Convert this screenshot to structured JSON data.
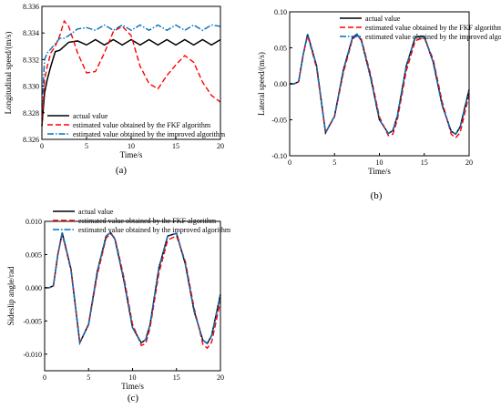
{
  "chart_data": [
    {
      "id": "a",
      "type": "line",
      "panel_label": "(a)",
      "xlabel": "Time/s",
      "ylabel": "Longitudinal speed/(m/s)",
      "xlim": [
        0,
        20
      ],
      "ylim": [
        8.326,
        8.336
      ],
      "xticks": [
        0,
        5,
        10,
        15,
        20
      ],
      "yticks": [
        8.326,
        8.328,
        8.33,
        8.332,
        8.334,
        8.336
      ],
      "ytick_labels": [
        "8.326",
        "8.328",
        "8.330",
        "8.332",
        "8.334",
        "8.336"
      ],
      "legend_position": "bottom-left",
      "series": [
        {
          "name": "actual value",
          "color": "#000000",
          "dash": "solid",
          "x": [
            0,
            0.3,
            0.6,
            1,
            1.5,
            2,
            2.5,
            3,
            4,
            5,
            6,
            7,
            8,
            9,
            10,
            11,
            12,
            13,
            14,
            15,
            16,
            17,
            18,
            19,
            20
          ],
          "y": [
            8.327,
            8.3295,
            8.3305,
            8.3315,
            8.3326,
            8.3327,
            8.333,
            8.3333,
            8.3334,
            8.3331,
            8.3335,
            8.3331,
            8.3335,
            8.3331,
            8.3335,
            8.3331,
            8.3335,
            8.3331,
            8.3335,
            8.3331,
            8.3335,
            8.3331,
            8.3335,
            8.3331,
            8.3335
          ]
        },
        {
          "name": "estimated value obtained by the FKF algorithm",
          "color": "#ff0000",
          "dash": "dashed",
          "x": [
            0,
            0.3,
            0.6,
            1,
            1.5,
            2,
            2.5,
            3,
            4,
            5,
            6,
            7,
            8,
            9,
            10,
            11,
            12,
            13,
            14,
            15,
            16,
            17,
            18,
            19,
            20
          ],
          "y": [
            8.327,
            8.3305,
            8.3315,
            8.3325,
            8.333,
            8.3338,
            8.3349,
            8.3345,
            8.3325,
            8.331,
            8.3311,
            8.3325,
            8.3341,
            8.3345,
            8.3338,
            8.3315,
            8.3302,
            8.3298,
            8.3308,
            8.3316,
            8.3323,
            8.3318,
            8.3303,
            8.3293,
            8.3288
          ]
        },
        {
          "name": "estimated value obtained by the improved algorithm",
          "color": "#0070c0",
          "dash": "dashdot",
          "x": [
            0,
            0.3,
            0.6,
            1,
            1.5,
            2,
            2.5,
            3,
            4,
            5,
            6,
            7,
            8,
            9,
            10,
            11,
            12,
            13,
            14,
            15,
            16,
            17,
            18,
            19,
            20
          ],
          "y": [
            8.3285,
            8.332,
            8.3325,
            8.3328,
            8.3332,
            8.3336,
            8.3336,
            8.3338,
            8.3343,
            8.3344,
            8.3342,
            8.3346,
            8.3342,
            8.3346,
            8.3342,
            8.3346,
            8.3342,
            8.3346,
            8.3342,
            8.3346,
            8.3342,
            8.3346,
            8.3342,
            8.3346,
            8.3345
          ]
        }
      ]
    },
    {
      "id": "b",
      "type": "line",
      "panel_label": "(b)",
      "xlabel": "Time/s",
      "ylabel": "Lateral speed/(m/s)",
      "xlim": [
        0,
        20
      ],
      "ylim": [
        -0.1,
        0.1
      ],
      "xticks": [
        0,
        5,
        10,
        15,
        20
      ],
      "yticks": [
        -0.1,
        -0.05,
        0,
        0.05,
        0.1
      ],
      "ytick_labels": [
        "-0.10",
        "-0.05",
        "0.00",
        "0.05",
        "0.10"
      ],
      "legend_position": "top-right",
      "series": [
        {
          "name": "actual value",
          "color": "#000000",
          "dash": "solid",
          "x": [
            0,
            0.5,
            1,
            1.5,
            2,
            3,
            4,
            5,
            6,
            7,
            7.5,
            8,
            9,
            10,
            11,
            11.5,
            12,
            13,
            14,
            15,
            16,
            17,
            18,
            18.5,
            19,
            20
          ],
          "y": [
            0,
            0,
            0.003,
            0.04,
            0.069,
            0.025,
            -0.068,
            -0.045,
            0.02,
            0.064,
            0.069,
            0.06,
            0.01,
            -0.05,
            -0.069,
            -0.065,
            -0.045,
            0.025,
            0.065,
            0.066,
            0.03,
            -0.03,
            -0.066,
            -0.07,
            -0.06,
            -0.008
          ]
        },
        {
          "name": "estimated value obtained by the FKF algorithm",
          "color": "#ff0000",
          "dash": "dashed",
          "x": [
            0,
            0.5,
            1,
            1.5,
            2,
            3,
            4,
            5,
            6,
            7,
            7.5,
            8,
            9,
            10,
            11,
            11.5,
            12,
            13,
            14,
            15,
            16,
            17,
            18,
            18.5,
            19,
            20
          ],
          "y": [
            0,
            0,
            0.003,
            0.04,
            0.067,
            0.022,
            -0.068,
            -0.046,
            0.016,
            0.062,
            0.067,
            0.062,
            0.014,
            -0.046,
            -0.072,
            -0.07,
            -0.05,
            0.018,
            0.06,
            0.064,
            0.034,
            -0.025,
            -0.07,
            -0.075,
            -0.068,
            -0.015
          ]
        },
        {
          "name": "estimated value obtained by the improved algorithm",
          "color": "#0070c0",
          "dash": "dashdot",
          "x": [
            0,
            0.5,
            1,
            1.5,
            2,
            3,
            4,
            5,
            6,
            7,
            7.5,
            8,
            9,
            10,
            11,
            11.5,
            12,
            13,
            14,
            15,
            16,
            17,
            18,
            18.5,
            19,
            20
          ],
          "y": [
            0,
            0,
            0.003,
            0.04,
            0.069,
            0.025,
            -0.068,
            -0.045,
            0.02,
            0.064,
            0.069,
            0.06,
            0.01,
            -0.05,
            -0.069,
            -0.065,
            -0.045,
            0.025,
            0.065,
            0.066,
            0.03,
            -0.03,
            -0.066,
            -0.07,
            -0.06,
            -0.009
          ]
        }
      ]
    },
    {
      "id": "c",
      "type": "line",
      "panel_label": "(c)",
      "xlabel": "Time/s",
      "ylabel": "Sideslip angle/rad",
      "xlim": [
        0,
        20
      ],
      "ylim": [
        -0.0125,
        0.01
      ],
      "xticks": [
        0,
        5,
        10,
        15,
        20
      ],
      "yticks": [
        -0.01,
        -0.005,
        0,
        0.005,
        0.01
      ],
      "ytick_labels": [
        "-0.010",
        "-0.005",
        "0.000",
        "0.005",
        "0.010"
      ],
      "legend_position": "top-left",
      "series": [
        {
          "name": "actual value",
          "color": "#000000",
          "dash": "solid",
          "x": [
            0,
            0.5,
            1,
            1.5,
            2,
            3,
            4,
            5,
            6,
            7,
            7.5,
            8,
            9,
            10,
            11,
            11.5,
            12,
            13,
            14,
            15,
            16,
            17,
            18,
            18.5,
            19,
            20
          ],
          "y": [
            0,
            0,
            0.0003,
            0.005,
            0.0083,
            0.0028,
            -0.0083,
            -0.0055,
            0.0025,
            0.0078,
            0.0083,
            0.0073,
            0.0012,
            -0.006,
            -0.0083,
            -0.0078,
            -0.0055,
            0.003,
            0.0078,
            0.0082,
            0.0036,
            -0.0035,
            -0.0079,
            -0.0084,
            -0.0072,
            -0.001
          ]
        },
        {
          "name": "estimated value obtained by the FKF algorithm",
          "color": "#ff0000",
          "dash": "dashed",
          "x": [
            0,
            0.5,
            1,
            1.5,
            2,
            3,
            4,
            5,
            6,
            7,
            7.5,
            8,
            9,
            10,
            11,
            11.5,
            12,
            13,
            14,
            15,
            16,
            17,
            18,
            18.5,
            19,
            20
          ],
          "y": [
            0,
            0,
            0.0003,
            0.005,
            0.0081,
            0.0026,
            -0.0083,
            -0.0056,
            0.002,
            0.0075,
            0.0081,
            0.0075,
            0.0017,
            -0.0055,
            -0.0087,
            -0.0084,
            -0.006,
            0.0022,
            0.0072,
            0.0078,
            0.004,
            -0.003,
            -0.0085,
            -0.0091,
            -0.0082,
            -0.002
          ]
        },
        {
          "name": "estimated value obtained by the improved algorithm",
          "color": "#0070c0",
          "dash": "dashdot",
          "x": [
            0,
            0.5,
            1,
            1.5,
            2,
            3,
            4,
            5,
            6,
            7,
            7.5,
            8,
            9,
            10,
            11,
            11.5,
            12,
            13,
            14,
            15,
            16,
            17,
            18,
            18.5,
            19,
            20
          ],
          "y": [
            0,
            0,
            0.0003,
            0.005,
            0.0083,
            0.0028,
            -0.0083,
            -0.0055,
            0.0025,
            0.0078,
            0.0083,
            0.0073,
            0.0012,
            -0.006,
            -0.0083,
            -0.0078,
            -0.0055,
            0.003,
            0.0078,
            0.0082,
            0.0036,
            -0.0035,
            -0.0079,
            -0.0084,
            -0.0072,
            -0.0011
          ]
        }
      ]
    }
  ]
}
